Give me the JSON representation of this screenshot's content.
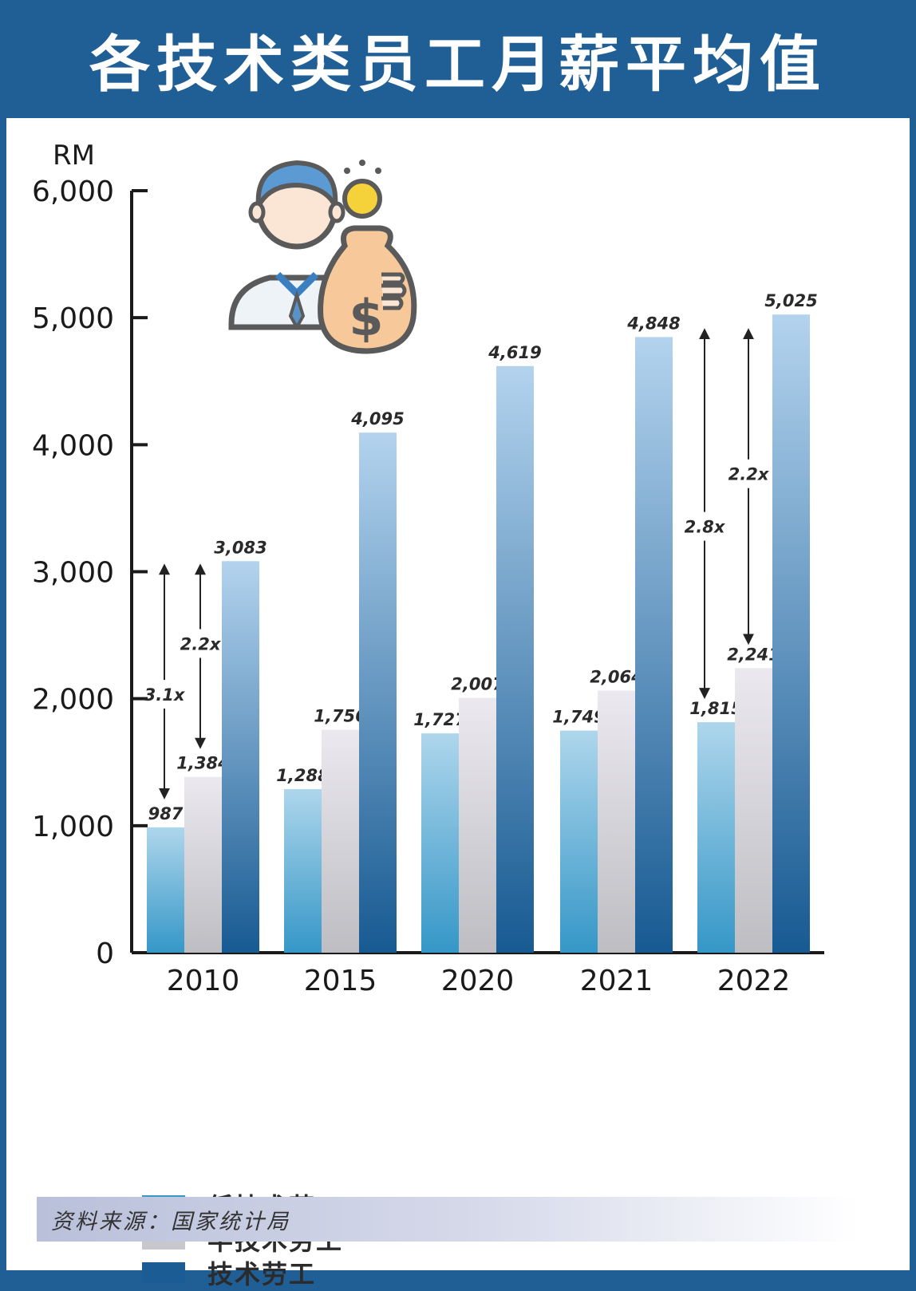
{
  "title": "各技术类员工月薪平均值",
  "source": "资料来源：国家统计局",
  "chart_data": {
    "type": "bar",
    "unit_label": "RM",
    "categories": [
      "2010",
      "2015",
      "2020",
      "2021",
      "2022"
    ],
    "ylim": [
      0,
      6000
    ],
    "yticks": [
      "0",
      "1,000",
      "2,000",
      "3,000",
      "4,000",
      "5,000",
      "6,000"
    ],
    "series": [
      {
        "name": "低技术劳工",
        "color": "#3a98c8",
        "values": [
          987,
          1288,
          1727,
          1749,
          1815
        ],
        "labels": [
          "987",
          "1,288",
          "1,727",
          "1,749",
          "1,815"
        ]
      },
      {
        "name": "半技术劳工",
        "color": "#c8c8cc",
        "values": [
          1384,
          1756,
          2007,
          2064,
          2241
        ],
        "labels": [
          "1,384",
          "1,756",
          "2,007",
          "2,064",
          "2,241"
        ]
      },
      {
        "name": "技术劳工",
        "color": "#1c5c94",
        "values": [
          3083,
          4095,
          4619,
          4848,
          5025
        ],
        "labels": [
          "3,083",
          "4,095",
          "4,619",
          "4,848",
          "5,025"
        ]
      }
    ],
    "annotations": [
      {
        "category": "2010",
        "label": "3.1x",
        "from": 987,
        "to": 3083
      },
      {
        "category": "2010",
        "label": "2.2x",
        "from": 1384,
        "to": 3083
      },
      {
        "category": "2022",
        "label": "2.8x",
        "from": 1815,
        "to": 5025
      },
      {
        "category": "2022",
        "label": "2.2x",
        "from": 2241,
        "to": 5025
      }
    ],
    "grid": false,
    "legend_position": "bottom-left"
  }
}
